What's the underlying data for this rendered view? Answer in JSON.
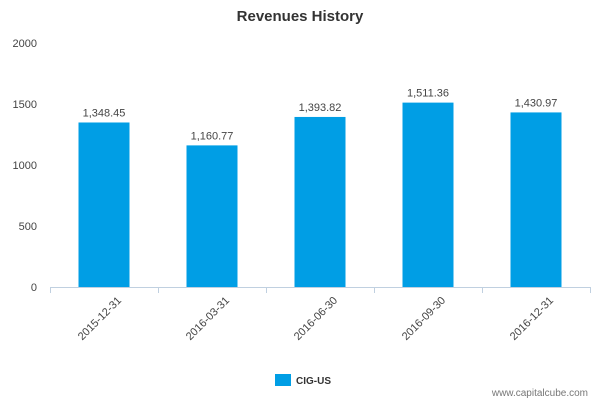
{
  "chart_data": {
    "type": "bar",
    "title": "Revenues History",
    "xlabel": "",
    "ylabel": "",
    "categories": [
      "2015-12-31",
      "2016-03-31",
      "2016-06-30",
      "2016-09-30",
      "2016-12-31"
    ],
    "series": [
      {
        "name": "CIG-US",
        "values": [
          1348.45,
          1160.77,
          1393.82,
          1511.36,
          1430.97
        ],
        "data_labels": [
          "1,348.45",
          "1,160.77",
          "1,393.82",
          "1,511.36",
          "1,430.97"
        ],
        "color": "#009ee5"
      }
    ],
    "ylim": [
      0,
      2000
    ],
    "yticks": [
      "0",
      "500",
      "1000",
      "1500",
      "2000"
    ],
    "ytick_values": [
      0,
      500,
      1000,
      1500,
      2000
    ],
    "grid": false,
    "legend_position": "bottom-center"
  },
  "watermark": "www.capitalcube.com",
  "colors": {
    "bar": "#009ee5",
    "axis": "#c0d0e0",
    "text": "#444444"
  }
}
